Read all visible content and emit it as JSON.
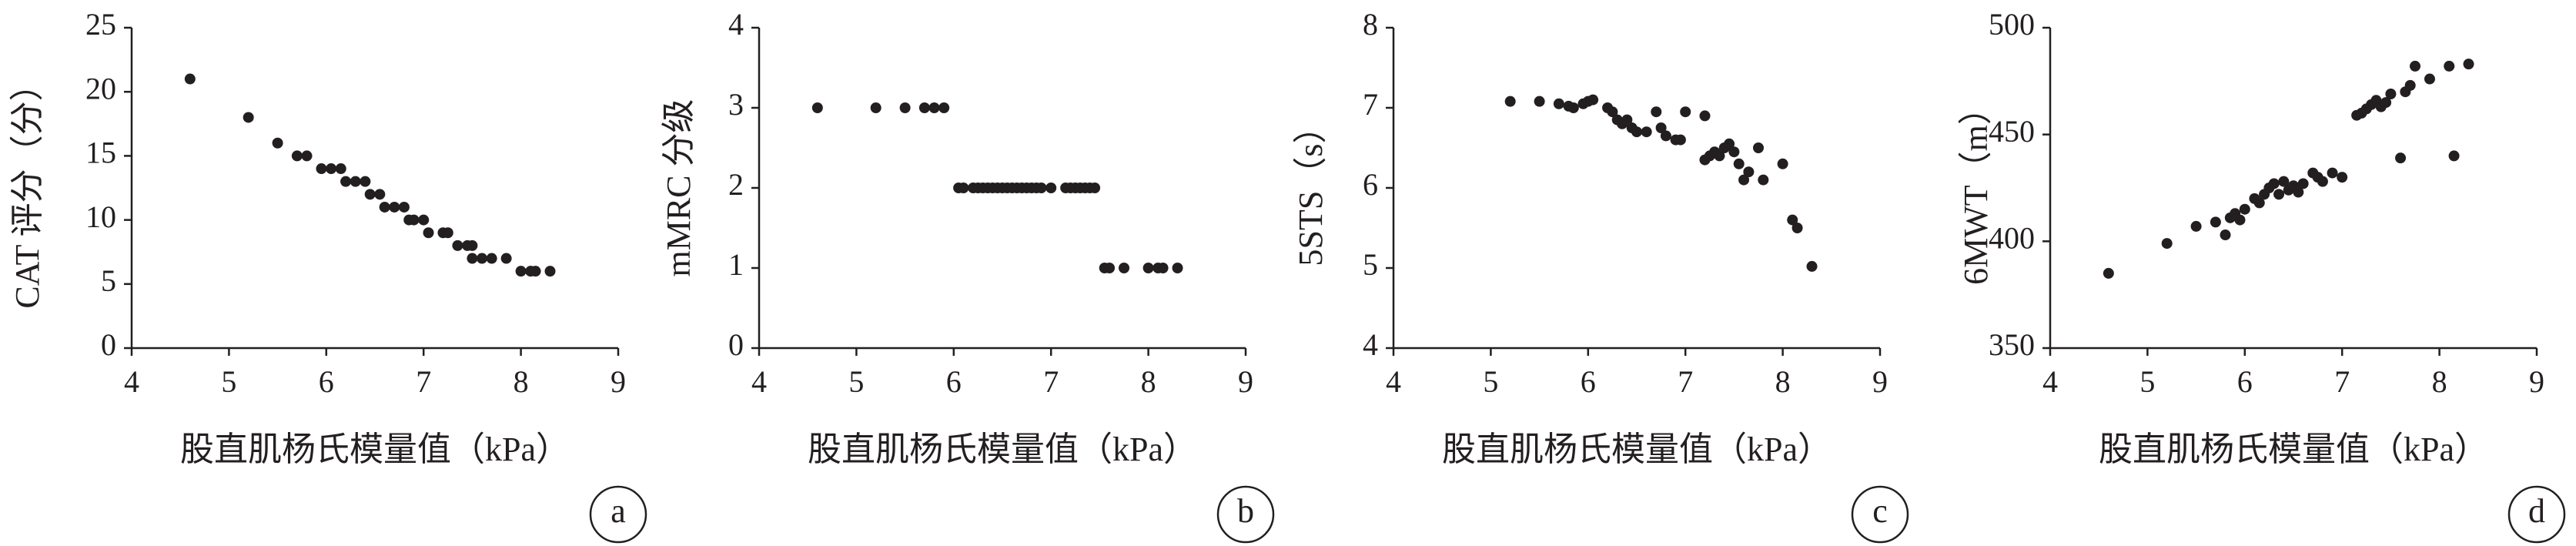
{
  "chart_data": [
    {
      "type": "scatter",
      "panel_label": "a",
      "x_label": "股直肌杨氏模量值（kPa）",
      "y_label": "CAT 评分（分）",
      "color": "#231f20",
      "xlim": [
        4,
        9
      ],
      "xticks": [
        4,
        5,
        6,
        7,
        8,
        9
      ],
      "ylim": [
        0,
        25
      ],
      "yticks": [
        0,
        5,
        10,
        15,
        20,
        25
      ],
      "x": [
        4.6,
        5.2,
        5.5,
        5.7,
        5.8,
        5.95,
        6.05,
        6.15,
        6.2,
        6.3,
        6.4,
        6.45,
        6.55,
        6.6,
        6.7,
        6.8,
        6.85,
        6.9,
        7.0,
        7.05,
        7.2,
        7.25,
        7.35,
        7.45,
        7.5,
        7.5,
        7.6,
        7.7,
        7.85,
        8.0,
        8.1,
        8.15,
        8.3
      ],
      "values": [
        21,
        18,
        16,
        15,
        15,
        14,
        14,
        14,
        13,
        13,
        13,
        12,
        12,
        11,
        11,
        11,
        10,
        10,
        10,
        9,
        9,
        9,
        8,
        8,
        8,
        7,
        7,
        7,
        7,
        6,
        6,
        6,
        6
      ]
    },
    {
      "type": "scatter",
      "panel_label": "b",
      "x_label": "股直肌杨氏模量值（kPa）",
      "y_label": "mMRC 分级",
      "color": "#231f20",
      "xlim": [
        4,
        9
      ],
      "xticks": [
        4,
        5,
        6,
        7,
        8,
        9
      ],
      "ylim": [
        0,
        4
      ],
      "yticks": [
        0,
        1,
        2,
        3,
        4
      ],
      "x": [
        4.6,
        5.2,
        5.5,
        5.7,
        5.8,
        5.9,
        6.05,
        6.1,
        6.2,
        6.25,
        6.3,
        6.35,
        6.4,
        6.45,
        6.5,
        6.55,
        6.6,
        6.65,
        6.7,
        6.75,
        6.8,
        6.85,
        6.9,
        7.0,
        7.15,
        7.2,
        7.25,
        7.3,
        7.35,
        7.4,
        7.45,
        7.55,
        7.6,
        7.75,
        8.0,
        8.1,
        8.15,
        8.3
      ],
      "values": [
        3,
        3,
        3,
        3,
        3,
        3,
        2,
        2,
        2,
        2,
        2,
        2,
        2,
        2,
        2,
        2,
        2,
        2,
        2,
        2,
        2,
        2,
        2,
        2,
        2,
        2,
        2,
        2,
        2,
        2,
        2,
        1,
        1,
        1,
        1,
        1,
        1,
        1
      ]
    },
    {
      "type": "scatter",
      "panel_label": "c",
      "x_label": "股直肌杨氏模量值（kPa）",
      "y_label": "5STS（s）",
      "color": "#231f20",
      "xlim": [
        4,
        9
      ],
      "xticks": [
        4,
        5,
        6,
        7,
        8,
        9
      ],
      "ylim": [
        4,
        8
      ],
      "yticks": [
        4,
        5,
        6,
        7,
        8
      ],
      "x": [
        5.2,
        5.5,
        5.7,
        5.8,
        5.85,
        5.95,
        6.05,
        6.0,
        6.2,
        6.25,
        6.3,
        6.35,
        6.4,
        6.45,
        6.5,
        6.6,
        6.7,
        6.75,
        6.8,
        6.9,
        7.0,
        6.95,
        7.2,
        7.2,
        7.25,
        7.3,
        7.35,
        7.4,
        7.45,
        7.5,
        7.55,
        7.6,
        7.65,
        7.75,
        7.8,
        8.0,
        8.1,
        8.15,
        8.3
      ],
      "values": [
        7.08,
        7.08,
        7.05,
        7.02,
        7.0,
        7.05,
        7.1,
        7.08,
        7.0,
        6.95,
        6.85,
        6.8,
        6.85,
        6.75,
        6.7,
        6.7,
        6.95,
        6.75,
        6.65,
        6.6,
        6.95,
        6.6,
        6.9,
        6.35,
        6.4,
        6.45,
        6.4,
        6.5,
        6.55,
        6.45,
        6.3,
        6.1,
        6.2,
        6.5,
        6.1,
        6.3,
        5.6,
        5.5,
        5.02
      ]
    },
    {
      "type": "scatter",
      "panel_label": "d",
      "x_label": "股直肌杨氏模量值（kPa）",
      "y_label": "6MWT（m）",
      "color": "#231f20",
      "xlim": [
        4,
        9
      ],
      "xticks": [
        4,
        5,
        6,
        7,
        8,
        9
      ],
      "ylim": [
        350,
        500
      ],
      "yticks": [
        350,
        400,
        450,
        500
      ],
      "x": [
        4.6,
        5.2,
        5.5,
        5.7,
        5.8,
        5.85,
        5.9,
        5.95,
        6.0,
        6.1,
        6.15,
        6.2,
        6.25,
        6.3,
        6.35,
        6.4,
        6.45,
        6.5,
        6.55,
        6.6,
        6.7,
        6.75,
        6.8,
        6.9,
        7.0,
        7.15,
        7.2,
        7.25,
        7.3,
        7.35,
        7.4,
        7.45,
        7.5,
        7.6,
        7.65,
        7.7,
        7.75,
        7.9,
        8.1,
        8.15,
        8.3
      ],
      "values": [
        385,
        399,
        407,
        409,
        403,
        411,
        413,
        410,
        415,
        420,
        418,
        422,
        425,
        427,
        422,
        428,
        424,
        426,
        423,
        427,
        432,
        430,
        428,
        432,
        430,
        459,
        460,
        462,
        464,
        466,
        463,
        465,
        469,
        439,
        470,
        473,
        482,
        476,
        482,
        440,
        483
      ]
    }
  ]
}
